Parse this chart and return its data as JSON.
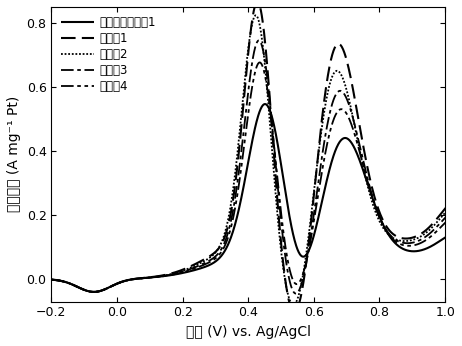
{
  "xlabel": "电压 (V) vs. Ag/AgCl",
  "ylabel": "电流密度 (A mg⁻¹ Pt)",
  "xlim": [
    -0.2,
    1.0
  ],
  "ylim": [
    -0.07,
    0.85
  ],
  "xticks": [
    -0.2,
    0.0,
    0.2,
    0.4,
    0.6,
    0.8,
    1.0
  ],
  "yticks": [
    0.0,
    0.2,
    0.4,
    0.6,
    0.8
  ],
  "legend_labels": [
    "对比实施实施例1",
    "实施例1",
    "实施例2",
    "实施例3",
    "实施例4"
  ],
  "background_color": "#ffffff",
  "line_widths": [
    1.5,
    1.5,
    1.3,
    1.3,
    1.3
  ]
}
